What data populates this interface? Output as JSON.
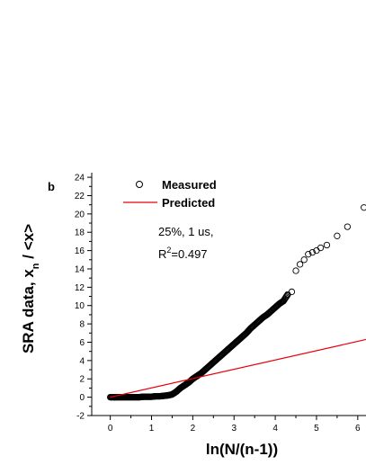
{
  "chart_data": {
    "type": "scatter",
    "panel_label": "b",
    "title": "",
    "xlabel": "ln(N/(n-1))",
    "ylabel": {
      "prefix": "SRA data,  x",
      "subscript": "n",
      "suffix": " / <x>"
    },
    "xlim": [
      -0.45,
      6.2
    ],
    "ylim": [
      -2,
      24.5
    ],
    "xticks": [
      0,
      1,
      2,
      3,
      4,
      5,
      6
    ],
    "yticks": [
      -2,
      0,
      2,
      4,
      6,
      8,
      10,
      12,
      14,
      16,
      18,
      20,
      22,
      24
    ],
    "grid": false,
    "legend_position": "top-left",
    "series": [
      {
        "name": "Measured",
        "marker": "open-circle",
        "color": "#000000",
        "points": [
          [
            0.0,
            0.0
          ],
          [
            0.1,
            0.0
          ],
          [
            0.2,
            0.0
          ],
          [
            0.3,
            0.0
          ],
          [
            0.4,
            0.0
          ],
          [
            0.5,
            0.0
          ],
          [
            0.6,
            0.0
          ],
          [
            0.7,
            0.0
          ],
          [
            0.8,
            0.05
          ],
          [
            0.9,
            0.05
          ],
          [
            1.0,
            0.05
          ],
          [
            1.1,
            0.1
          ],
          [
            1.2,
            0.1
          ],
          [
            1.3,
            0.15
          ],
          [
            1.4,
            0.2
          ],
          [
            1.5,
            0.3
          ],
          [
            1.6,
            0.6
          ],
          [
            1.7,
            1.0
          ],
          [
            1.8,
            1.3
          ],
          [
            1.9,
            1.6
          ],
          [
            2.0,
            2.0
          ],
          [
            2.1,
            2.3
          ],
          [
            2.2,
            2.6
          ],
          [
            2.3,
            3.0
          ],
          [
            2.4,
            3.4
          ],
          [
            2.5,
            3.8
          ],
          [
            2.6,
            4.2
          ],
          [
            2.7,
            4.6
          ],
          [
            2.8,
            5.0
          ],
          [
            2.9,
            5.4
          ],
          [
            3.0,
            5.8
          ],
          [
            3.1,
            6.2
          ],
          [
            3.2,
            6.6
          ],
          [
            3.3,
            7.0
          ],
          [
            3.4,
            7.5
          ],
          [
            3.5,
            7.9
          ],
          [
            3.6,
            8.3
          ],
          [
            3.7,
            8.7
          ],
          [
            3.8,
            9.0
          ],
          [
            3.9,
            9.4
          ],
          [
            4.0,
            9.8
          ],
          [
            4.1,
            10.2
          ],
          [
            4.2,
            10.5
          ],
          [
            4.3,
            11.2
          ],
          [
            4.4,
            11.5
          ],
          [
            4.5,
            13.8
          ],
          [
            4.6,
            14.5
          ],
          [
            4.7,
            15.0
          ],
          [
            4.8,
            15.6
          ],
          [
            4.9,
            15.8
          ],
          [
            5.0,
            16.0
          ],
          [
            5.1,
            16.3
          ],
          [
            5.25,
            16.6
          ],
          [
            5.5,
            17.6
          ],
          [
            5.75,
            18.6
          ],
          [
            6.15,
            20.7
          ]
        ]
      },
      {
        "name": "Predicted",
        "marker": "line",
        "color": "#e8000b",
        "points": [
          [
            0.0,
            0.0
          ],
          [
            6.2,
            6.3
          ]
        ]
      }
    ],
    "annotations": {
      "line1": "25%, 1 us,",
      "r2_prefix": "R",
      "r2_sup": "2",
      "r2_value": "=0.497"
    }
  }
}
